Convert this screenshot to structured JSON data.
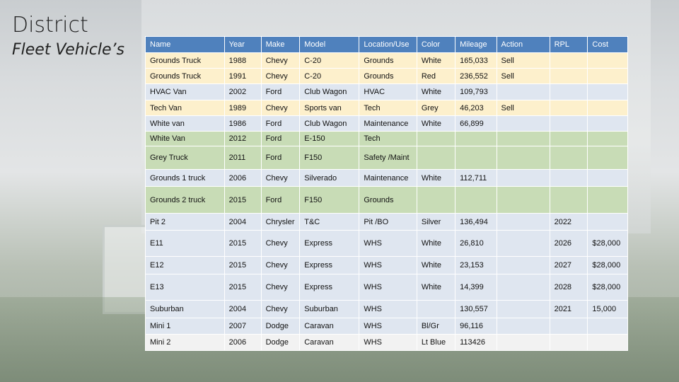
{
  "title": "District",
  "subtitle": "Fleet Vehicle’s",
  "table": {
    "headers": [
      "Name",
      "Year",
      "Make",
      "Model",
      "Location/Use",
      "Color",
      "Mileage",
      "Action",
      "RPL",
      "Cost"
    ],
    "rows": [
      {
        "cells": [
          "Grounds Truck",
          "1988",
          "Chevy",
          "C-20",
          "Grounds",
          "White",
          "165,033",
          "Sell",
          "",
          ""
        ],
        "fill": "yellow"
      },
      {
        "cells": [
          "Grounds Truck",
          "1991",
          "Chevy",
          "C-20",
          "Grounds",
          "Red",
          "236,552",
          "Sell",
          "",
          ""
        ],
        "fill": "yellow"
      },
      {
        "cells": [
          "HVAC Van",
          "2002",
          "Ford",
          "Club Wagon",
          "HVAC",
          "White",
          "109,793",
          "",
          "",
          ""
        ],
        "fill": "blue"
      },
      {
        "cells": [
          "Tech Van",
          "1989",
          "Chevy",
          "Sports van",
          "Tech",
          "Grey",
          "46,203",
          "Sell",
          "",
          ""
        ],
        "fill": "yellow"
      },
      {
        "cells": [
          "White van",
          "1986",
          "Ford",
          "Club Wagon",
          "Maintenance",
          "White",
          "66,899",
          "",
          "",
          ""
        ],
        "fill": "blue"
      },
      {
        "cells": [
          "White Van",
          "2012",
          "Ford",
          "E-150",
          "Tech",
          "",
          "",
          "",
          "",
          ""
        ],
        "fill": "green"
      },
      {
        "cells": [
          "Grey Truck",
          "2011",
          "Ford",
          "F150",
          "Safety /Maint",
          "",
          "",
          "",
          "",
          ""
        ],
        "fill": "green"
      },
      {
        "cells": [
          "Grounds 1 truck",
          "2006",
          "Chevy",
          "Silverado",
          "Maintenance",
          "White",
          "112,711",
          "",
          "",
          ""
        ],
        "fill": "blue"
      },
      {
        "cells": [
          "Grounds 2 truck",
          "2015",
          "Ford",
          "F150",
          "Grounds",
          "",
          "",
          "",
          "",
          ""
        ],
        "fill": "green"
      },
      {
        "cells": [
          "Pit 2",
          "2004",
          "Chrysler",
          "T&C",
          "Pit /BO",
          "Silver",
          "136,494",
          "",
          "2022",
          ""
        ],
        "fill": "blue"
      },
      {
        "cells": [
          "E11",
          "2015",
          "Chevy",
          "Express",
          "WHS",
          "White",
          "26,810",
          "",
          "2026",
          "$28,000"
        ],
        "fill": "blue"
      },
      {
        "cells": [
          "E12",
          "2015",
          "Chevy",
          "Express",
          "WHS",
          "White",
          "23,153",
          "",
          "2027",
          "$28,000"
        ],
        "fill": "blue"
      },
      {
        "cells": [
          "E13",
          "2015",
          "Chevy",
          "Express",
          "WHS",
          "White",
          "14,399",
          "",
          "2028",
          "$28,000"
        ],
        "fill": "blue"
      },
      {
        "cells": [
          "Suburban",
          "2004",
          "Chevy",
          "Suburban",
          "WHS",
          "",
          "130,557",
          "",
          "2021",
          "15,000"
        ],
        "fill": "blue"
      },
      {
        "cells": [
          "Mini 1",
          "2007",
          "Dodge",
          "Caravan",
          "WHS",
          "Bl/Gr",
          "96,116",
          "",
          "",
          ""
        ],
        "fill": "blue"
      },
      {
        "cells": [
          "Mini 2",
          "2006",
          "Dodge",
          "Caravan",
          "WHS",
          "Lt Blue",
          "113426",
          "",
          "",
          ""
        ],
        "fill": "white"
      }
    ]
  },
  "colors": {
    "header": "#4f81bd",
    "yellow_row": "#fdf0cc",
    "blue_row": "#dfe6f0",
    "green_row": "#c8dcb6",
    "white_row": "#f2f2f2"
  }
}
